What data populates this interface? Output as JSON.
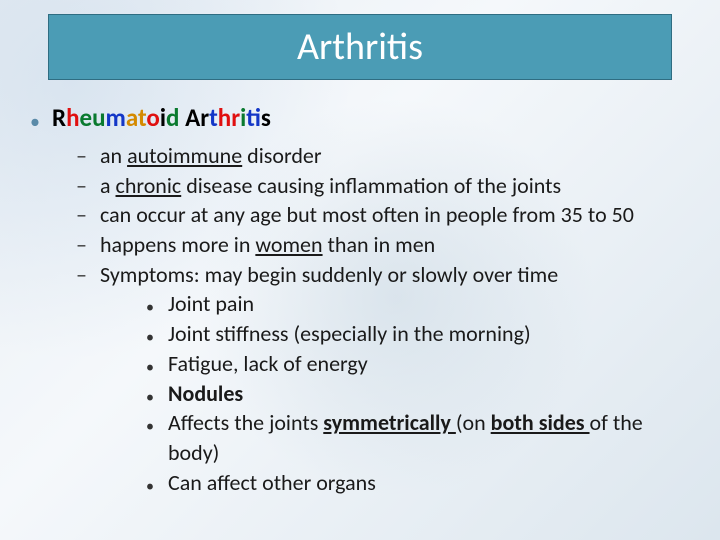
{
  "title": "Arthritis",
  "title_bar": {
    "bg": "#4b9cb5",
    "border": "#2f6d82",
    "text_color": "#ffffff",
    "fontsize": 38
  },
  "body_font": {
    "family": "Calibri",
    "size_main": 22,
    "size_heading": 25
  },
  "main_bullet_color": "#5a8aa8",
  "heading": {
    "letters": [
      {
        "t": "R",
        "c": "#000000"
      },
      {
        "t": "h",
        "c": "#e01010"
      },
      {
        "t": "e",
        "c": "#0a7a2f"
      },
      {
        "t": "u",
        "c": "#0a7a2f"
      },
      {
        "t": "m",
        "c": "#1437c7"
      },
      {
        "t": "a",
        "c": "#d48a00"
      },
      {
        "t": "t",
        "c": "#d48a00"
      },
      {
        "t": "o",
        "c": "#e01010"
      },
      {
        "t": "i",
        "c": "#000000"
      },
      {
        "t": "d",
        "c": "#0a7a2f"
      },
      {
        "t": " ",
        "c": "#000000"
      },
      {
        "t": "A",
        "c": "#000000"
      },
      {
        "t": "r",
        "c": "#000000"
      },
      {
        "t": "t",
        "c": "#1437c7"
      },
      {
        "t": "h",
        "c": "#e01010"
      },
      {
        "t": "r",
        "c": "#e01010"
      },
      {
        "t": "i",
        "c": "#0a7a2f"
      },
      {
        "t": "t",
        "c": "#1437c7"
      },
      {
        "t": "i",
        "c": "#0a7a2f"
      },
      {
        "t": "s",
        "c": "#000000"
      }
    ]
  },
  "dash_items": [
    {
      "pre": "an ",
      "u": "autoimmune",
      "post": " disorder"
    },
    {
      "pre": "a ",
      "u": "chronic",
      "post": " disease causing inflammation of the joints"
    },
    {
      "pre": "",
      "u": "",
      "post": "can occur at any age but most often in people from 35 to 50"
    },
    {
      "pre": "happens more in ",
      "u": "women",
      "post": " than in men"
    },
    {
      "pre": "",
      "u": "",
      "post": "Symptoms: may begin suddenly or slowly over time"
    }
  ],
  "sub_items": {
    "s0": "Joint pain",
    "s1": "Joint stiffness (especially in the morning)",
    "s2": "Fatigue, lack of energy",
    "s3": "Nodules",
    "s4_pre": "Affects the joints ",
    "s4_u1": "symmetrically ",
    "s4_mid": "(on ",
    "s4_u2": "both sides ",
    "s4_post": "of the body)",
    "s5": "Can affect other organs"
  }
}
